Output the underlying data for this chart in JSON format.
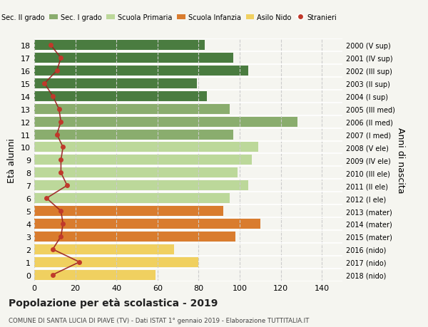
{
  "ages": [
    0,
    1,
    2,
    3,
    4,
    5,
    6,
    7,
    8,
    9,
    10,
    11,
    12,
    13,
    14,
    15,
    16,
    17,
    18
  ],
  "bar_values": [
    59,
    80,
    68,
    98,
    110,
    92,
    95,
    104,
    99,
    106,
    109,
    97,
    128,
    95,
    84,
    79,
    104,
    97,
    83
  ],
  "stranieri": [
    9,
    22,
    9,
    13,
    14,
    13,
    6,
    16,
    13,
    13,
    14,
    11,
    13,
    12,
    9,
    5,
    11,
    13,
    8
  ],
  "right_labels": [
    "2018 (nido)",
    "2017 (nido)",
    "2016 (nido)",
    "2015 (mater)",
    "2014 (mater)",
    "2013 (mater)",
    "2012 (I ele)",
    "2011 (II ele)",
    "2010 (III ele)",
    "2009 (IV ele)",
    "2008 (V ele)",
    "2007 (I med)",
    "2006 (II med)",
    "2005 (III med)",
    "2004 (I sup)",
    "2003 (II sup)",
    "2002 (III sup)",
    "2001 (IV sup)",
    "2000 (V sup)"
  ],
  "bar_colors": [
    "#f0d060",
    "#f0d060",
    "#f0d060",
    "#d97c2e",
    "#d97c2e",
    "#d97c2e",
    "#bcd89a",
    "#bcd89a",
    "#bcd89a",
    "#bcd89a",
    "#bcd89a",
    "#8aad6e",
    "#8aad6e",
    "#8aad6e",
    "#4a7c40",
    "#4a7c40",
    "#4a7c40",
    "#4a7c40",
    "#4a7c40"
  ],
  "legend_labels": [
    "Sec. II grado",
    "Sec. I grado",
    "Scuola Primaria",
    "Scuola Infanzia",
    "Asilo Nido",
    "Stranieri"
  ],
  "legend_colors": [
    "#4a7c40",
    "#8aad6e",
    "#bcd89a",
    "#d97c2e",
    "#f0d060",
    "#c0392b"
  ],
  "stranieri_color": "#c0392b",
  "line_color": "#9b2020",
  "title": "Popolazione per età scolastica - 2019",
  "subtitle": "COMUNE DI SANTA LUCIA DI PIAVE (TV) - Dati ISTAT 1° gennaio 2019 - Elaborazione TUTTITALIA.IT",
  "ylabel_left": "Età alunni",
  "ylabel_right": "Anni di nascita",
  "xlim": [
    0,
    150
  ],
  "xticks": [
    0,
    20,
    40,
    60,
    80,
    100,
    120,
    140
  ],
  "bg_color": "#f5f5f0"
}
